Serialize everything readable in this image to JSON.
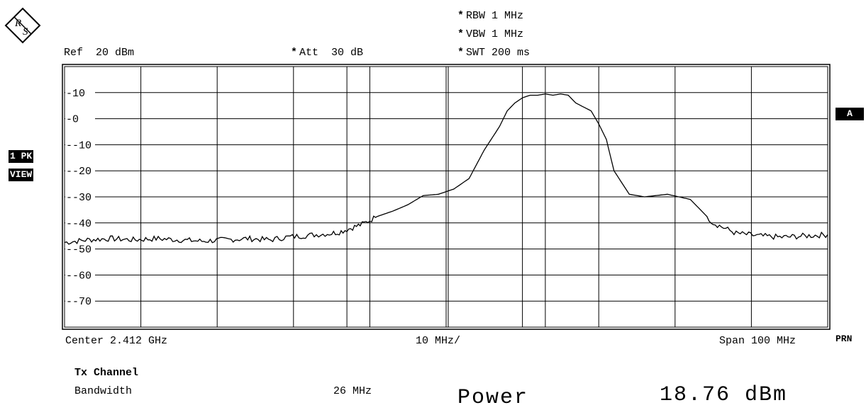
{
  "header": {
    "ref_label": "Ref",
    "ref_value": "20 dBm",
    "att_label": "Att",
    "att_value": "30 dB",
    "rbw_label": "RBW",
    "rbw_value": "1 MHz",
    "vbw_label": "VBW",
    "vbw_value": "1 MHz",
    "swt_label": "SWT",
    "swt_value": "200 ms",
    "star": "*"
  },
  "side": {
    "trace_tag": "1 PK",
    "view_tag": "VIEW",
    "trace_marker": "A"
  },
  "footer": {
    "center": "Center 2.412 GHz",
    "div": "10 MHz/",
    "span": "Span 100 MHz",
    "prn": "PRN"
  },
  "results": {
    "heading": "Tx Channel",
    "bandwidth_label": "Bandwidth",
    "bandwidth_value": "26 MHz",
    "power_label": "Power",
    "power_value": "18.76 dBm"
  },
  "colors": {
    "trace": "#000000",
    "grid": "#000000",
    "background": "#ffffff"
  },
  "chart_data": {
    "type": "line",
    "title": "",
    "xlabel": "",
    "ylabel": "",
    "ylim": [
      -80,
      20
    ],
    "xlim": [
      2.362,
      2.462
    ],
    "x_unit": "GHz",
    "y_unit": "dBm",
    "y_ticks": [
      10,
      0,
      -10,
      -20,
      -30,
      -40,
      -50,
      -60,
      -70
    ],
    "x_divisions": 10,
    "channel_lines_x": [
      2.399,
      2.425
    ],
    "grid": true,
    "series": [
      {
        "x": [
          2.362,
          2.365,
          2.368,
          2.371,
          2.374,
          2.377,
          2.38,
          2.383,
          2.386,
          2.389,
          2.391,
          2.393,
          2.395,
          2.397,
          2.398,
          2.399,
          2.4,
          2.401,
          2.402,
          2.403,
          2.405,
          2.407,
          2.409,
          2.411,
          2.412,
          2.413,
          2.415,
          2.417,
          2.419,
          2.42,
          2.421,
          2.422,
          2.423,
          2.424,
          2.425,
          2.426,
          2.427,
          2.428,
          2.429,
          2.431,
          2.432,
          2.433,
          2.434,
          2.436,
          2.438,
          2.441,
          2.444,
          2.447,
          2.45,
          2.453,
          2.456,
          2.459,
          2.462
        ],
        "y": [
          -47.5,
          -46.5,
          -46,
          -46.5,
          -46,
          -46.5,
          -47,
          -46.5,
          -46,
          -46.5,
          -45.5,
          -45,
          -44.5,
          -44,
          -43.5,
          -42.5,
          -41.5,
          -40.5,
          -39,
          -37.5,
          -35.5,
          -33,
          -29.5,
          -29,
          -28,
          -27,
          -23,
          -12,
          -3,
          3,
          6,
          8,
          9,
          9,
          9.5,
          9,
          9.5,
          9,
          6,
          3,
          -2,
          -8,
          -20,
          -29,
          -30,
          -29,
          -31,
          -40,
          -44,
          -45,
          -45.5,
          -45,
          -44.5
        ]
      }
    ]
  }
}
